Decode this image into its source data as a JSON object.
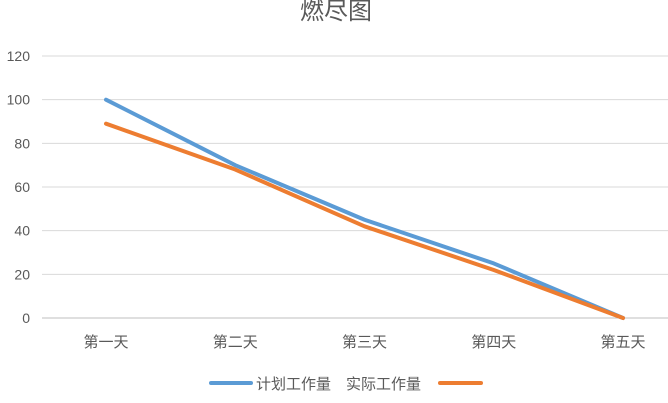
{
  "chart_data": {
    "type": "line",
    "title": "燃尽图",
    "categories": [
      "第一天",
      "第二天",
      "第三天",
      "第四天",
      "第五天"
    ],
    "series": [
      {
        "name": "计划工作量",
        "values": [
          100,
          70,
          45,
          25,
          0
        ],
        "color": "#5B9BD5"
      },
      {
        "name": "实际工作量",
        "values": [
          89,
          68,
          42,
          22,
          0
        ],
        "color": "#ED7D31"
      }
    ],
    "ylim": [
      0,
      120
    ],
    "y_ticks": [
      0,
      20,
      40,
      60,
      80,
      100,
      120
    ],
    "xlabel": "",
    "ylabel": "",
    "grid": true,
    "legend_position": "bottom"
  },
  "colors": {
    "gridline": "#D9D9D9",
    "axis": "#BFBFBF",
    "text": "#595959"
  }
}
